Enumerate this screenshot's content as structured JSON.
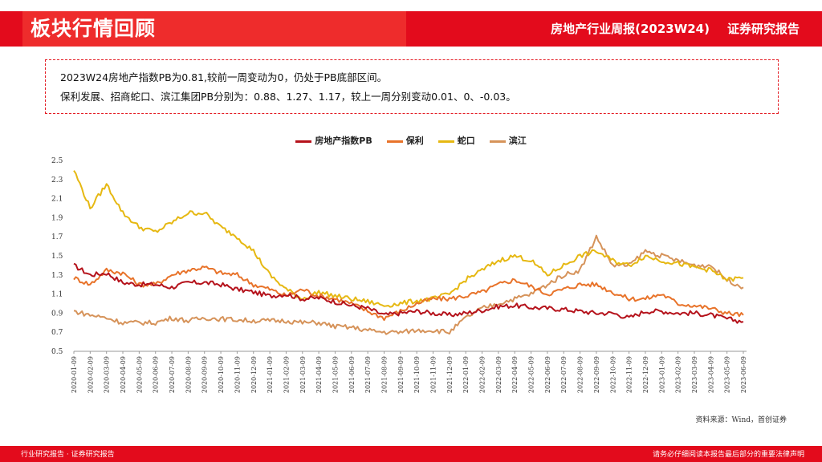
{
  "header": {
    "section_title": "板块行情回顾",
    "report_title": "房地产行业周报(2023W24)",
    "report_type": "证券研究报告"
  },
  "summary": {
    "line1": "2023W24房地产指数PB为0.81,较前一周变动为0，仍处于PB底部区间。",
    "line2": "保利发展、招商蛇口、滨江集团PB分别为：0.88、1.27、1.17，较上一周分别变动0.01、0、-0.03。"
  },
  "chart_data": {
    "type": "line",
    "title": "",
    "xlabel": "",
    "ylabel": "",
    "ylim": [
      0.5,
      2.5
    ],
    "yticks": [
      "2.5",
      "2.3",
      "2.1",
      "1.9",
      "1.7",
      "1.5",
      "1.3",
      "1.1",
      "0.9",
      "0.7",
      "0.5"
    ],
    "x": [
      "2020-01-09",
      "2020-02-09",
      "2020-03-09",
      "2020-04-09",
      "2020-05-09",
      "2020-06-09",
      "2020-07-09",
      "2020-08-09",
      "2020-09-09",
      "2020-10-09",
      "2020-11-09",
      "2020-12-09",
      "2021-01-09",
      "2021-02-09",
      "2021-03-09",
      "2021-04-09",
      "2021-05-09",
      "2021-06-09",
      "2021-07-09",
      "2021-08-09",
      "2021-09-09",
      "2021-10-09",
      "2021-11-09",
      "2021-12-09",
      "2022-01-09",
      "2022-02-09",
      "2022-03-09",
      "2022-04-09",
      "2022-05-09",
      "2022-06-09",
      "2022-07-09",
      "2022-08-09",
      "2022-09-09",
      "2022-10-09",
      "2022-11-09",
      "2022-12-09",
      "2023-01-09",
      "2023-02-09",
      "2023-03-09",
      "2023-04-09",
      "2023-05-09",
      "2023-06-09"
    ],
    "series": [
      {
        "name": "房地产指数PB",
        "color": "#b5121b",
        "values": [
          1.4,
          1.3,
          1.32,
          1.22,
          1.2,
          1.2,
          1.17,
          1.22,
          1.22,
          1.2,
          1.15,
          1.12,
          1.08,
          1.1,
          1.05,
          1.06,
          1.02,
          0.98,
          0.95,
          0.88,
          0.9,
          0.92,
          0.9,
          0.88,
          0.9,
          0.93,
          0.97,
          0.98,
          0.96,
          0.95,
          0.94,
          0.92,
          0.9,
          0.9,
          0.85,
          0.92,
          0.92,
          0.9,
          0.9,
          0.88,
          0.84,
          0.81
        ]
      },
      {
        "name": "保利",
        "color": "#e8732a",
        "values": [
          1.27,
          1.2,
          1.35,
          1.32,
          1.2,
          1.2,
          1.3,
          1.35,
          1.38,
          1.32,
          1.3,
          1.2,
          1.15,
          1.08,
          1.15,
          1.08,
          1.05,
          1.0,
          0.92,
          0.85,
          0.92,
          1.0,
          1.05,
          1.05,
          1.08,
          1.12,
          1.2,
          1.25,
          1.18,
          1.1,
          1.15,
          1.2,
          1.2,
          1.12,
          1.05,
          1.05,
          1.1,
          1.0,
          0.98,
          0.95,
          0.9,
          0.88
        ]
      },
      {
        "name": "蛇口",
        "color": "#e6b812",
        "values": [
          2.4,
          2.0,
          2.25,
          1.95,
          1.8,
          1.75,
          1.85,
          1.95,
          1.95,
          1.8,
          1.7,
          1.55,
          1.3,
          1.15,
          1.05,
          1.12,
          1.08,
          1.05,
          1.02,
          0.98,
          1.0,
          1.03,
          1.05,
          1.1,
          1.25,
          1.35,
          1.45,
          1.5,
          1.45,
          1.3,
          1.4,
          1.5,
          1.55,
          1.45,
          1.4,
          1.5,
          1.45,
          1.42,
          1.38,
          1.35,
          1.25,
          1.27
        ]
      },
      {
        "name": "滨江",
        "color": "#d6935a",
        "values": [
          0.92,
          0.88,
          0.85,
          0.8,
          0.8,
          0.8,
          0.85,
          0.82,
          0.85,
          0.84,
          0.83,
          0.82,
          0.82,
          0.82,
          0.8,
          0.8,
          0.76,
          0.75,
          0.72,
          0.7,
          0.7,
          0.72,
          0.72,
          0.7,
          0.85,
          0.95,
          1.0,
          1.05,
          1.1,
          1.2,
          1.3,
          1.35,
          1.7,
          1.4,
          1.4,
          1.55,
          1.5,
          1.45,
          1.4,
          1.4,
          1.25,
          1.17
        ]
      }
    ]
  },
  "source_note": "资料来源：Wind，首创证券",
  "footer": {
    "left": "行业研究报告 · 证券研究报告",
    "right": "请务必仔细阅读本报告最后部分的重要法律声明"
  }
}
